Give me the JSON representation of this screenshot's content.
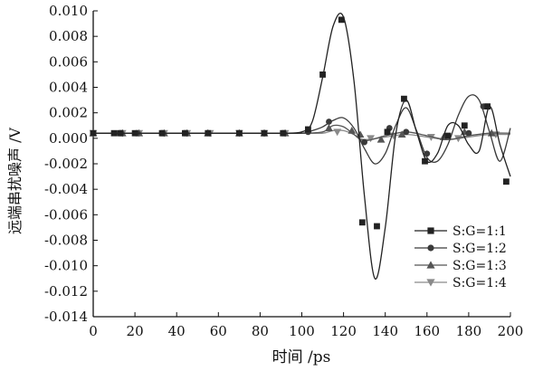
{
  "chart_data": {
    "type": "line",
    "xlabel": "时间 /ps",
    "ylabel": "远端串扰噪声 /V",
    "xlim": [
      0,
      200
    ],
    "ylim": [
      -0.014,
      0.01
    ],
    "x_ticks": [
      0,
      20,
      40,
      60,
      80,
      100,
      120,
      140,
      160,
      180,
      200
    ],
    "x_tick_labels": [
      "0",
      "20",
      "40",
      "60",
      "80",
      "100",
      "120",
      "140",
      "160",
      "180",
      "200"
    ],
    "y_ticks": [
      0.01,
      0.008,
      0.006,
      0.004,
      0.002,
      0.0,
      -0.002,
      -0.004,
      -0.006,
      -0.008,
      -0.01,
      -0.012,
      -0.014
    ],
    "y_tick_labels": [
      "0.010",
      "0.008",
      "0.006",
      "0.004",
      "0.002",
      "0.000",
      "-0.002",
      "-0.004",
      "-0.006",
      "-0.008",
      "-0.010",
      "-0.012",
      "-0.014"
    ],
    "grid": false,
    "legend_position": "bottom-right",
    "series": [
      {
        "name": "S:G=1:1",
        "marker": "square",
        "x": [
          0,
          10,
          20,
          30,
          40,
          50,
          60,
          70,
          80,
          90,
          100,
          105,
          110,
          115,
          120,
          125,
          130,
          135,
          140,
          145,
          150,
          155,
          160,
          165,
          170,
          175,
          180,
          185,
          190,
          195,
          200
        ],
        "y": [
          0.0004,
          0.0004,
          0.0004,
          0.0004,
          0.0004,
          0.0004,
          0.0004,
          0.0004,
          0.0004,
          0.0004,
          0.0005,
          0.0013,
          0.0048,
          0.0088,
          0.0095,
          0.0045,
          -0.0045,
          -0.011,
          -0.007,
          0.0003,
          0.003,
          0.0005,
          -0.0018,
          -0.0012,
          0.001,
          0.001,
          -0.0005,
          -0.001,
          0.0025,
          -0.0005,
          -0.003
        ],
        "markers": [
          [
            0,
            0.0004
          ],
          [
            10,
            0.0004
          ],
          [
            13,
            0.0004
          ],
          [
            20,
            0.0004
          ],
          [
            33,
            0.0004
          ],
          [
            44,
            0.0004
          ],
          [
            55,
            0.0004
          ],
          [
            70,
            0.0004
          ],
          [
            82,
            0.0004
          ],
          [
            91,
            0.0004
          ],
          [
            103,
            0.0007
          ],
          [
            110,
            0.005
          ],
          [
            119,
            0.0093
          ],
          [
            129,
            -0.0066
          ],
          [
            136,
            -0.0069
          ],
          [
            141,
            0.0005
          ],
          [
            149,
            0.0031
          ],
          [
            159,
            -0.0018
          ],
          [
            170,
            0.0002
          ],
          [
            178,
            0.001
          ],
          [
            189,
            0.0025
          ],
          [
            198,
            -0.0034
          ]
        ]
      },
      {
        "name": "S:G=1:2",
        "marker": "circle",
        "x": [
          0,
          20,
          40,
          60,
          80,
          100,
          105,
          110,
          115,
          120,
          125,
          130,
          135,
          140,
          145,
          150,
          155,
          160,
          165,
          170,
          175,
          180,
          185,
          190,
          195,
          200
        ],
        "y": [
          0.0004,
          0.0004,
          0.0004,
          0.0004,
          0.0004,
          0.0004,
          0.0006,
          0.0009,
          0.0014,
          0.0016,
          0.0008,
          -0.0008,
          -0.002,
          -0.0012,
          0.001,
          0.0024,
          0.0006,
          -0.0015,
          -0.0018,
          -0.0005,
          0.0018,
          0.0033,
          0.003,
          0.0005,
          -0.0018,
          0.0008
        ],
        "markers": [
          [
            0,
            0.0004
          ],
          [
            13,
            0.0004
          ],
          [
            21,
            0.0004
          ],
          [
            33,
            0.0004
          ],
          [
            44,
            0.0004
          ],
          [
            55,
            0.0004
          ],
          [
            70,
            0.0004
          ],
          [
            82,
            0.0004
          ],
          [
            91,
            0.0004
          ],
          [
            103,
            0.0005
          ],
          [
            113,
            0.0013
          ],
          [
            130,
            -0.0003
          ],
          [
            142,
            0.0008
          ],
          [
            150,
            0.0005
          ],
          [
            160,
            -0.0012
          ],
          [
            180,
            0.0004
          ],
          [
            187,
            0.0025
          ]
        ]
      },
      {
        "name": "S:G=1:3",
        "marker": "triangle-up",
        "x": [
          0,
          20,
          40,
          60,
          80,
          100,
          110,
          115,
          120,
          125,
          130,
          140,
          150,
          160,
          170,
          180,
          190,
          200
        ],
        "y": [
          0.0004,
          0.0004,
          0.0004,
          0.0004,
          0.0004,
          0.0004,
          0.0005,
          0.001,
          0.0009,
          0.0003,
          -0.0002,
          0.0002,
          0.0005,
          0.0002,
          -0.0001,
          0.0002,
          0.0004,
          0.0004
        ],
        "markers": [
          [
            0,
            0.0004
          ],
          [
            14,
            0.0004
          ],
          [
            22,
            0.0004
          ],
          [
            34,
            0.0004
          ],
          [
            45,
            0.0004
          ],
          [
            55,
            0.0004
          ],
          [
            70,
            0.0004
          ],
          [
            82,
            0.0004
          ],
          [
            92,
            0.0004
          ],
          [
            113,
            0.0008
          ],
          [
            124,
            0.0006
          ],
          [
            128,
            0.0003
          ],
          [
            138,
            -0.0001
          ],
          [
            148,
            0.0003
          ],
          [
            168,
            0.0001
          ],
          [
            178,
            0.0005
          ],
          [
            191,
            0.0004
          ]
        ]
      },
      {
        "name": "S:G=1:4",
        "marker": "triangle-down",
        "x": [
          0,
          20,
          40,
          60,
          80,
          100,
          110,
          115,
          120,
          125,
          130,
          140,
          150,
          160,
          170,
          180,
          190,
          200
        ],
        "y": [
          0.0004,
          0.0004,
          0.0004,
          0.0004,
          0.0004,
          0.0004,
          0.0004,
          0.0006,
          0.0006,
          0.0003,
          -0.0001,
          0.0001,
          0.0003,
          0.0001,
          -0.0001,
          0.0001,
          0.0003,
          0.0003
        ],
        "markers": [
          [
            0,
            0.0004
          ],
          [
            14,
            0.0004
          ],
          [
            22,
            0.0004
          ],
          [
            34,
            0.0004
          ],
          [
            45,
            0.0004
          ],
          [
            56,
            0.0004
          ],
          [
            70,
            0.0004
          ],
          [
            82,
            0.0004
          ],
          [
            92,
            0.0004
          ],
          [
            117,
            0.0005
          ],
          [
            133,
            0.0
          ],
          [
            144,
            0.0002
          ],
          [
            162,
            0.0001
          ],
          [
            175,
            0.0
          ],
          [
            193,
            0.0003
          ]
        ]
      }
    ]
  },
  "colors": {
    "ink": "#111111",
    "series": [
      "#222222",
      "#3a3a3a",
      "#555555",
      "#8a8a8a"
    ]
  }
}
